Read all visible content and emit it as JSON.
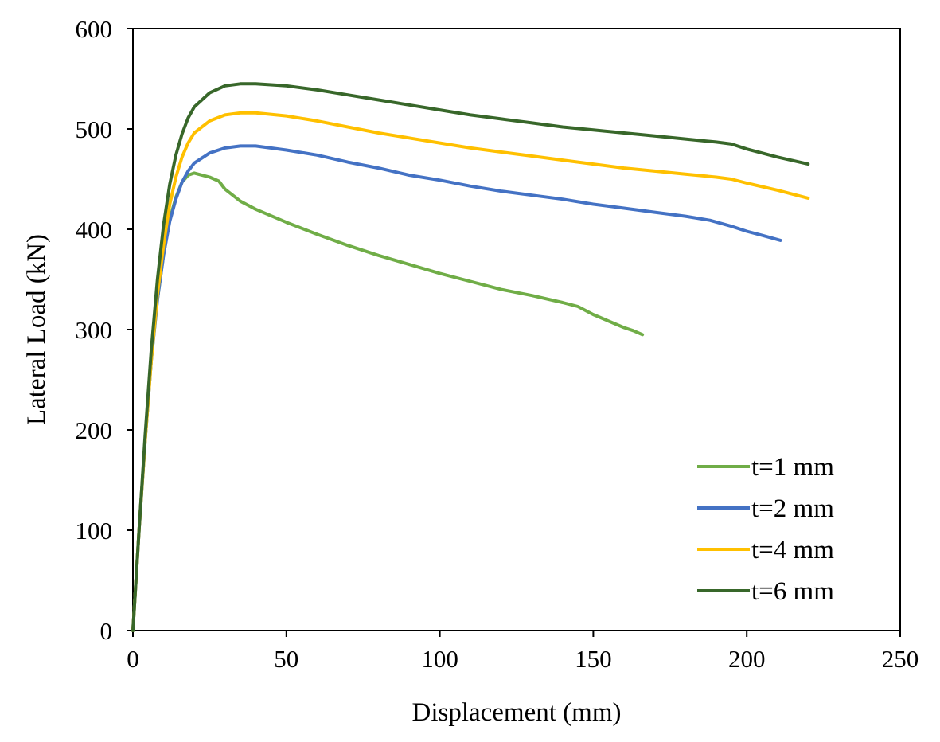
{
  "chart_data": {
    "type": "line",
    "title": "",
    "xlabel": "Displacement (mm)",
    "ylabel": "Lateral Load (kN)",
    "xlim": [
      0,
      250
    ],
    "ylim": [
      0,
      600
    ],
    "xticks": [
      0,
      50,
      100,
      150,
      200,
      250
    ],
    "yticks": [
      0,
      100,
      200,
      300,
      400,
      500,
      600
    ],
    "grid": false,
    "legend_position": "bottom-right",
    "series": [
      {
        "name": "t=1 mm",
        "color": "#70AD47",
        "points": [
          [
            0,
            0
          ],
          [
            2,
            100
          ],
          [
            4,
            190
          ],
          [
            6,
            270
          ],
          [
            8,
            330
          ],
          [
            10,
            375
          ],
          [
            12,
            410
          ],
          [
            14,
            432
          ],
          [
            16,
            447
          ],
          [
            18,
            454
          ],
          [
            20,
            456
          ],
          [
            25,
            452
          ],
          [
            28,
            448
          ],
          [
            30,
            440
          ],
          [
            35,
            428
          ],
          [
            40,
            420
          ],
          [
            50,
            407
          ],
          [
            60,
            395
          ],
          [
            70,
            384
          ],
          [
            80,
            374
          ],
          [
            90,
            365
          ],
          [
            100,
            356
          ],
          [
            110,
            348
          ],
          [
            120,
            340
          ],
          [
            130,
            334
          ],
          [
            140,
            327
          ],
          [
            145,
            323
          ],
          [
            150,
            315
          ],
          [
            160,
            302
          ],
          [
            163,
            299
          ],
          [
            166,
            295
          ]
        ]
      },
      {
        "name": "t=2 mm",
        "color": "#4472C4",
        "points": [
          [
            0,
            0
          ],
          [
            2,
            100
          ],
          [
            4,
            190
          ],
          [
            6,
            270
          ],
          [
            8,
            330
          ],
          [
            10,
            375
          ],
          [
            12,
            408
          ],
          [
            14,
            430
          ],
          [
            16,
            447
          ],
          [
            18,
            458
          ],
          [
            20,
            466
          ],
          [
            25,
            476
          ],
          [
            30,
            481
          ],
          [
            35,
            483
          ],
          [
            40,
            483
          ],
          [
            50,
            479
          ],
          [
            60,
            474
          ],
          [
            70,
            467
          ],
          [
            80,
            461
          ],
          [
            90,
            454
          ],
          [
            100,
            449
          ],
          [
            110,
            443
          ],
          [
            120,
            438
          ],
          [
            130,
            434
          ],
          [
            140,
            430
          ],
          [
            150,
            425
          ],
          [
            160,
            421
          ],
          [
            170,
            417
          ],
          [
            180,
            413
          ],
          [
            188,
            409
          ],
          [
            195,
            403
          ],
          [
            200,
            398
          ],
          [
            205,
            394
          ],
          [
            211,
            389
          ]
        ]
      },
      {
        "name": "t=4 mm",
        "color": "#FFC000",
        "points": [
          [
            0,
            0
          ],
          [
            2,
            100
          ],
          [
            4,
            190
          ],
          [
            6,
            270
          ],
          [
            8,
            335
          ],
          [
            10,
            385
          ],
          [
            12,
            425
          ],
          [
            14,
            452
          ],
          [
            16,
            472
          ],
          [
            18,
            486
          ],
          [
            20,
            496
          ],
          [
            25,
            508
          ],
          [
            30,
            514
          ],
          [
            35,
            516
          ],
          [
            40,
            516
          ],
          [
            50,
            513
          ],
          [
            60,
            508
          ],
          [
            70,
            502
          ],
          [
            80,
            496
          ],
          [
            90,
            491
          ],
          [
            100,
            486
          ],
          [
            110,
            481
          ],
          [
            120,
            477
          ],
          [
            130,
            473
          ],
          [
            140,
            469
          ],
          [
            150,
            465
          ],
          [
            160,
            461
          ],
          [
            170,
            458
          ],
          [
            180,
            455
          ],
          [
            190,
            452
          ],
          [
            195,
            450
          ],
          [
            200,
            446
          ],
          [
            210,
            439
          ],
          [
            220,
            431
          ]
        ]
      },
      {
        "name": "t=6 mm",
        "color": "#38672A",
        "points": [
          [
            0,
            0
          ],
          [
            2,
            100
          ],
          [
            4,
            195
          ],
          [
            6,
            280
          ],
          [
            8,
            350
          ],
          [
            10,
            405
          ],
          [
            12,
            445
          ],
          [
            14,
            474
          ],
          [
            16,
            495
          ],
          [
            18,
            511
          ],
          [
            20,
            522
          ],
          [
            25,
            536
          ],
          [
            30,
            543
          ],
          [
            35,
            545
          ],
          [
            40,
            545
          ],
          [
            50,
            543
          ],
          [
            60,
            539
          ],
          [
            70,
            534
          ],
          [
            80,
            529
          ],
          [
            90,
            524
          ],
          [
            100,
            519
          ],
          [
            110,
            514
          ],
          [
            120,
            510
          ],
          [
            130,
            506
          ],
          [
            140,
            502
          ],
          [
            150,
            499
          ],
          [
            160,
            496
          ],
          [
            170,
            493
          ],
          [
            180,
            490
          ],
          [
            190,
            487
          ],
          [
            195,
            485
          ],
          [
            200,
            480
          ],
          [
            210,
            472
          ],
          [
            220,
            465
          ]
        ]
      }
    ]
  }
}
